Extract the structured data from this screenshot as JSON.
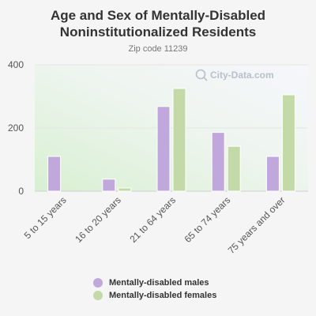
{
  "chart_data": {
    "type": "bar",
    "title": "Age and Sex of Mentally-Disabled Noninstitutionalized Residents",
    "subtitle": "Zip code 11239",
    "categories": [
      "5 to 15 years",
      "16 to 20 years",
      "21 to 64 years",
      "65 to 74 years",
      "75 years and over"
    ],
    "series": [
      {
        "name": "Mentally-disabled males",
        "color": "#c0a8dc",
        "values": [
          110,
          38,
          268,
          186,
          110
        ]
      },
      {
        "name": "Mentally-disabled females",
        "color": "#c4d9a8",
        "values": [
          0,
          10,
          325,
          142,
          305
        ]
      }
    ],
    "yticks": [
      0,
      200,
      400
    ],
    "ylim": [
      0,
      400
    ],
    "grid": true,
    "legend_position": "bottom",
    "watermark": "City-Data.com"
  }
}
